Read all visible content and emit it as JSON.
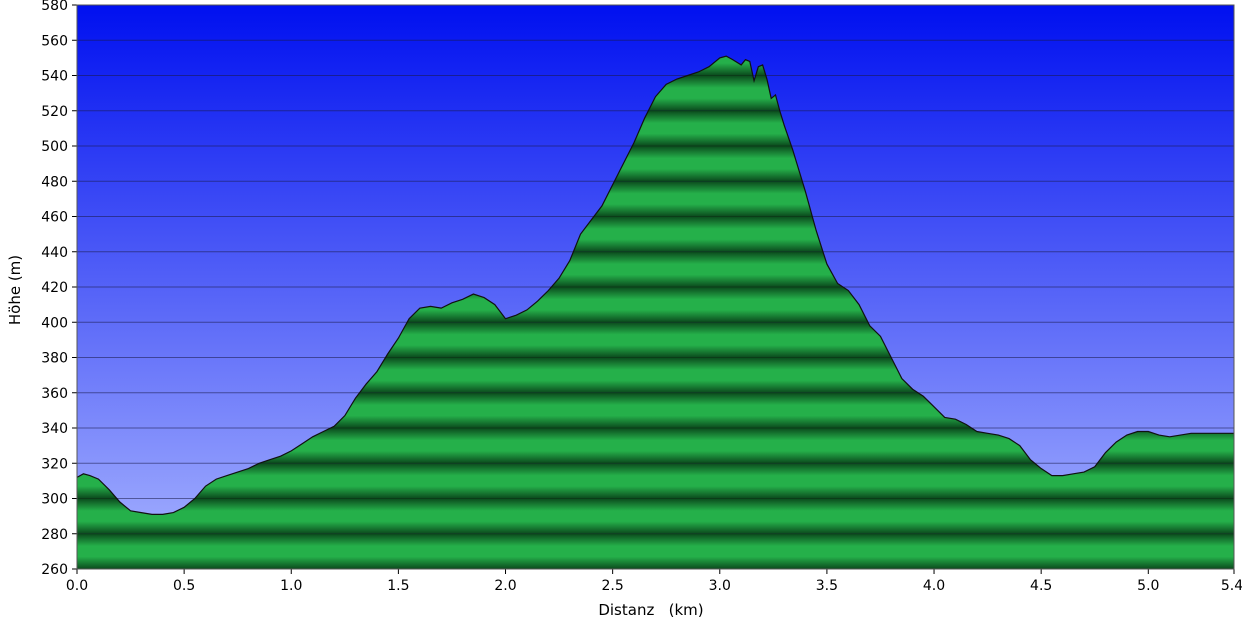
{
  "chart_data": {
    "type": "area",
    "title": "",
    "xlabel": "Distanz   (km)",
    "ylabel": "Höhe (m)",
    "xlim": [
      0,
      5.4
    ],
    "ylim": [
      260,
      580
    ],
    "x_ticks": [
      0.0,
      0.5,
      1.0,
      1.5,
      2.0,
      2.5,
      3.0,
      3.5,
      4.0,
      4.5,
      5.0,
      5.4
    ],
    "x_tick_labels": [
      "0.0",
      "0.5",
      "1.0",
      "1.5",
      "2.0",
      "2.5",
      "3.0",
      "3.5",
      "4.0",
      "4.5",
      "5.0",
      "5.4"
    ],
    "y_ticks": [
      260,
      280,
      300,
      320,
      340,
      360,
      380,
      400,
      420,
      440,
      460,
      480,
      500,
      520,
      540,
      560,
      580
    ],
    "y_tick_labels": [
      "260",
      "280",
      "300",
      "320",
      "340",
      "360",
      "380",
      "400",
      "420",
      "440",
      "460",
      "480",
      "500",
      "520",
      "540",
      "560",
      "580"
    ],
    "grid": true,
    "legend": "none",
    "colors": {
      "background_top": "#0010f0",
      "background_bottom": "#a8b4ff",
      "fill_light": "#25b04a",
      "fill_dark": "#0b4a1d",
      "outline": "#111111"
    },
    "series": [
      {
        "x": [
          0.0,
          0.03,
          0.06,
          0.1,
          0.15,
          0.2,
          0.25,
          0.3,
          0.35,
          0.4,
          0.45,
          0.5,
          0.55,
          0.6,
          0.65,
          0.7,
          0.75,
          0.8,
          0.85,
          0.9,
          0.95,
          1.0,
          1.05,
          1.1,
          1.15,
          1.2,
          1.25,
          1.3,
          1.35,
          1.4,
          1.45,
          1.5,
          1.55,
          1.6,
          1.65,
          1.7,
          1.75,
          1.8,
          1.85,
          1.9,
          1.95,
          2.0,
          2.05,
          2.1,
          2.15,
          2.2,
          2.25,
          2.3,
          2.35,
          2.4,
          2.45,
          2.5,
          2.55,
          2.6,
          2.65,
          2.7,
          2.75,
          2.8,
          2.85,
          2.9,
          2.95,
          3.0,
          3.03,
          3.06,
          3.1,
          3.12,
          3.14,
          3.16,
          3.18,
          3.2,
          3.22,
          3.24,
          3.26,
          3.28,
          3.3,
          3.32,
          3.34,
          3.36,
          3.38,
          3.4,
          3.45,
          3.5,
          3.55,
          3.6,
          3.65,
          3.7,
          3.75,
          3.8,
          3.85,
          3.9,
          3.95,
          4.0,
          4.05,
          4.1,
          4.15,
          4.2,
          4.25,
          4.3,
          4.35,
          4.4,
          4.45,
          4.5,
          4.55,
          4.6,
          4.65,
          4.7,
          4.75,
          4.8,
          4.85,
          4.9,
          4.95,
          5.0,
          5.05,
          5.1,
          5.15,
          5.2,
          5.25,
          5.3,
          5.35,
          5.4
        ],
        "values": [
          312,
          314,
          313,
          311,
          305,
          298,
          293,
          292,
          291,
          291,
          292,
          295,
          300,
          307,
          311,
          313,
          315,
          317,
          320,
          322,
          324,
          327,
          331,
          335,
          338,
          341,
          347,
          357,
          365,
          372,
          382,
          391,
          402,
          408,
          409,
          408,
          411,
          413,
          416,
          414,
          410,
          402,
          404,
          407,
          412,
          418,
          425,
          435,
          450,
          458,
          466,
          478,
          490,
          502,
          516,
          528,
          535,
          538,
          540,
          542,
          545,
          550,
          551,
          549,
          546,
          549,
          548,
          537,
          545,
          546,
          538,
          527,
          529,
          520,
          512,
          505,
          498,
          490,
          482,
          474,
          452,
          433,
          422,
          418,
          410,
          398,
          392,
          380,
          368,
          362,
          358,
          352,
          346,
          345,
          342,
          338,
          337,
          336,
          334,
          330,
          322,
          317,
          313,
          313,
          314,
          315,
          318,
          326,
          332,
          336,
          338,
          338,
          336,
          335,
          336,
          337,
          337,
          337,
          337,
          337
        ]
      }
    ]
  }
}
